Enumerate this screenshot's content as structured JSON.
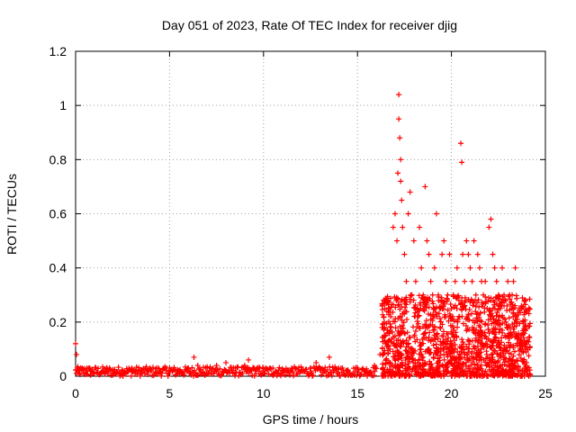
{
  "chart_data": {
    "type": "scatter",
    "title": "Day 051 of 2023, Rate Of TEC Index for receiver djig",
    "xlabel": "GPS time / hours",
    "ylabel": "ROTI / TECUs",
    "xlim": [
      0,
      25
    ],
    "ylim": [
      0,
      1.2
    ],
    "x_ticks": [
      0,
      5,
      10,
      15,
      20,
      25
    ],
    "x_tick_labels": [
      "0",
      "5",
      "10",
      "15",
      "20",
      "25"
    ],
    "y_ticks": [
      0,
      0.2,
      0.4,
      0.6,
      0.8,
      1.0,
      1.2
    ],
    "y_tick_labels": [
      "0",
      "0.2",
      "0.4",
      "0.6",
      "0.8",
      "1",
      "1.2"
    ],
    "grid": true,
    "grid_style": "dotted",
    "marker": "+",
    "marker_color": "#ff0000",
    "series": [
      {
        "x": [
          0.0,
          0.05,
          0.1,
          0.15,
          0.2,
          0.4,
          0.6,
          0.8,
          1.0,
          1.5,
          1.8,
          2.0,
          2.5,
          3.0,
          3.2,
          3.5,
          4.0,
          4.5,
          5.0,
          5.5,
          6.0,
          6.3,
          6.5,
          7.0,
          7.5,
          8.0,
          8.5,
          9.0,
          9.2,
          9.5,
          10.0,
          10.5,
          11.0,
          11.5,
          12.0,
          12.5,
          12.8,
          13.0,
          13.5,
          14.0,
          14.5,
          15.0,
          15.5,
          15.9,
          16.2,
          16.5,
          16.7,
          16.9,
          17.0,
          17.1,
          17.15,
          17.2,
          17.2,
          17.25,
          17.3,
          17.3,
          17.35,
          17.4,
          17.5,
          17.6,
          17.7,
          17.8,
          17.9,
          18.0,
          18.1,
          18.2,
          18.3,
          18.4,
          18.5,
          18.6,
          18.7,
          18.8,
          18.9,
          19.0,
          19.1,
          19.2,
          19.3,
          19.4,
          19.5,
          19.6,
          19.7,
          19.8,
          19.9,
          20.0,
          20.1,
          20.2,
          20.3,
          20.4,
          20.5,
          20.55,
          20.6,
          20.7,
          20.8,
          20.9,
          21.0,
          21.1,
          21.2,
          21.3,
          21.4,
          21.5,
          21.6,
          21.7,
          21.8,
          21.9,
          22.0,
          22.1,
          22.2,
          22.3,
          22.4,
          22.5,
          22.6,
          22.7,
          22.8,
          22.9,
          23.0,
          23.1,
          23.2,
          23.3,
          23.4,
          23.5,
          23.6,
          23.7,
          23.8,
          23.9,
          24.0
        ],
        "y": [
          0.12,
          0.08,
          0.03,
          0.02,
          0.01,
          0.02,
          0.03,
          0.02,
          0.01,
          0.02,
          0.03,
          0.01,
          0.02,
          0.03,
          0.02,
          0.01,
          0.02,
          0.02,
          0.03,
          0.02,
          0.03,
          0.07,
          0.04,
          0.03,
          0.04,
          0.05,
          0.03,
          0.04,
          0.06,
          0.03,
          0.02,
          0.03,
          0.02,
          0.03,
          0.02,
          0.03,
          0.05,
          0.03,
          0.07,
          0.03,
          0.02,
          0.03,
          0.02,
          0.04,
          0.08,
          0.12,
          0.25,
          0.55,
          0.6,
          0.5,
          0.75,
          1.04,
          0.95,
          0.88,
          0.8,
          0.72,
          0.65,
          0.55,
          0.45,
          0.35,
          0.6,
          0.68,
          0.3,
          0.5,
          0.35,
          0.25,
          0.55,
          0.4,
          0.3,
          0.7,
          0.5,
          0.45,
          0.35,
          0.3,
          0.4,
          0.6,
          0.3,
          0.25,
          0.45,
          0.5,
          0.35,
          0.3,
          0.45,
          0.25,
          0.3,
          0.35,
          0.4,
          0.28,
          0.86,
          0.79,
          0.45,
          0.35,
          0.5,
          0.45,
          0.4,
          0.35,
          0.5,
          0.3,
          0.45,
          0.4,
          0.35,
          0.3,
          0.35,
          0.25,
          0.55,
          0.58,
          0.45,
          0.4,
          0.35,
          0.3,
          0.25,
          0.4,
          0.3,
          0.2,
          0.35,
          0.3,
          0.25,
          0.35,
          0.4,
          0.2,
          0.25,
          0.15,
          0.2,
          0.1,
          0.05
        ]
      }
    ],
    "dense_fill": {
      "baseline": [
        {
          "x0": 0.0,
          "x1": 16.0,
          "y_min": 0.0,
          "y_max": 0.035
        }
      ],
      "cloud": [
        {
          "x0": 16.3,
          "x1": 24.2,
          "y_min": 0.0,
          "y_max": 0.3
        }
      ]
    }
  }
}
